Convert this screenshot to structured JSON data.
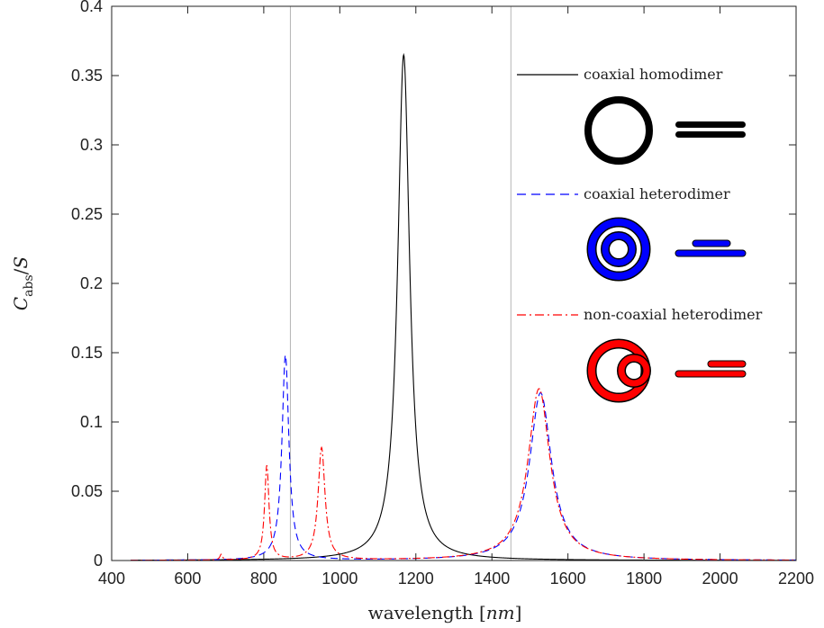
{
  "chart_data": {
    "type": "line",
    "xlabel": "wavelength [nm]",
    "ylabel": "C_abs/S",
    "xlim": [
      400,
      2200
    ],
    "ylim": [
      0,
      0.4
    ],
    "xticks": [
      400,
      600,
      800,
      1000,
      1200,
      1400,
      1600,
      1800,
      2000,
      2200
    ],
    "yticks": [
      0,
      0.05,
      0.1,
      0.15,
      0.2,
      0.25,
      0.3,
      0.35,
      0.4
    ],
    "xtick_labels": [
      "400",
      "600",
      "800",
      "1000",
      "1200",
      "1400",
      "1600",
      "1800",
      "2000",
      "2200"
    ],
    "ytick_labels": [
      "0",
      "0.05",
      "0.1",
      "0.15",
      "0.2",
      "0.25",
      "0.3",
      "0.35",
      "0.4"
    ],
    "vertical_lines": [
      870,
      1450
    ],
    "legend_position": "top-right",
    "grid": false,
    "series": [
      {
        "name": "coaxial homodimer",
        "color": "#000000",
        "style": "solid",
        "peaks": [
          {
            "x": 1168,
            "y": 0.365,
            "gamma": 38
          }
        ],
        "x": [
          450,
          600,
          700,
          800,
          900,
          950,
          1000,
          1050,
          1100,
          1130,
          1150,
          1160,
          1168,
          1175,
          1190,
          1210,
          1250,
          1300,
          1400,
          1500,
          1700,
          2000,
          2200
        ],
        "y": [
          0.0005,
          0.001,
          0.0015,
          0.002,
          0.004,
          0.006,
          0.009,
          0.017,
          0.045,
          0.11,
          0.22,
          0.31,
          0.365,
          0.33,
          0.22,
          0.12,
          0.045,
          0.02,
          0.008,
          0.005,
          0.002,
          0.001,
          0.0005
        ]
      },
      {
        "name": "coaxial heterodimer",
        "color": "#0000ff",
        "style": "dashed",
        "peaks": [
          {
            "x": 857,
            "y": 0.148,
            "gamma": 22
          },
          {
            "x": 1528,
            "y": 0.121,
            "gamma": 70
          }
        ],
        "x": [
          450,
          700,
          800,
          830,
          845,
          857,
          870,
          900,
          950,
          1000,
          1200,
          1400,
          1450,
          1500,
          1528,
          1560,
          1600,
          1700,
          1800,
          2000,
          2200
        ],
        "y": [
          0.0005,
          0.002,
          0.01,
          0.04,
          0.09,
          0.148,
          0.1,
          0.025,
          0.008,
          0.004,
          0.003,
          0.015,
          0.035,
          0.09,
          0.121,
          0.1,
          0.06,
          0.022,
          0.008,
          0.003,
          0.001
        ]
      },
      {
        "name": "non-coaxial heterodimer",
        "color": "#ff0000",
        "style": "dashdot",
        "peaks": [
          {
            "x": 688,
            "y": 0.004,
            "gamma": 8
          },
          {
            "x": 808,
            "y": 0.068,
            "gamma": 14
          },
          {
            "x": 952,
            "y": 0.081,
            "gamma": 22
          },
          {
            "x": 1524,
            "y": 0.124,
            "gamma": 70
          }
        ],
        "x": [
          450,
          688,
          760,
          808,
          860,
          900,
          952,
          1000,
          1100,
          1300,
          1450,
          1500,
          1524,
          1560,
          1600,
          1700,
          1800,
          2000,
          2200
        ],
        "y": [
          0.0005,
          0.004,
          0.008,
          0.068,
          0.01,
          0.02,
          0.081,
          0.015,
          0.004,
          0.008,
          0.035,
          0.095,
          0.124,
          0.1,
          0.06,
          0.022,
          0.008,
          0.003,
          0.001
        ]
      }
    ]
  }
}
